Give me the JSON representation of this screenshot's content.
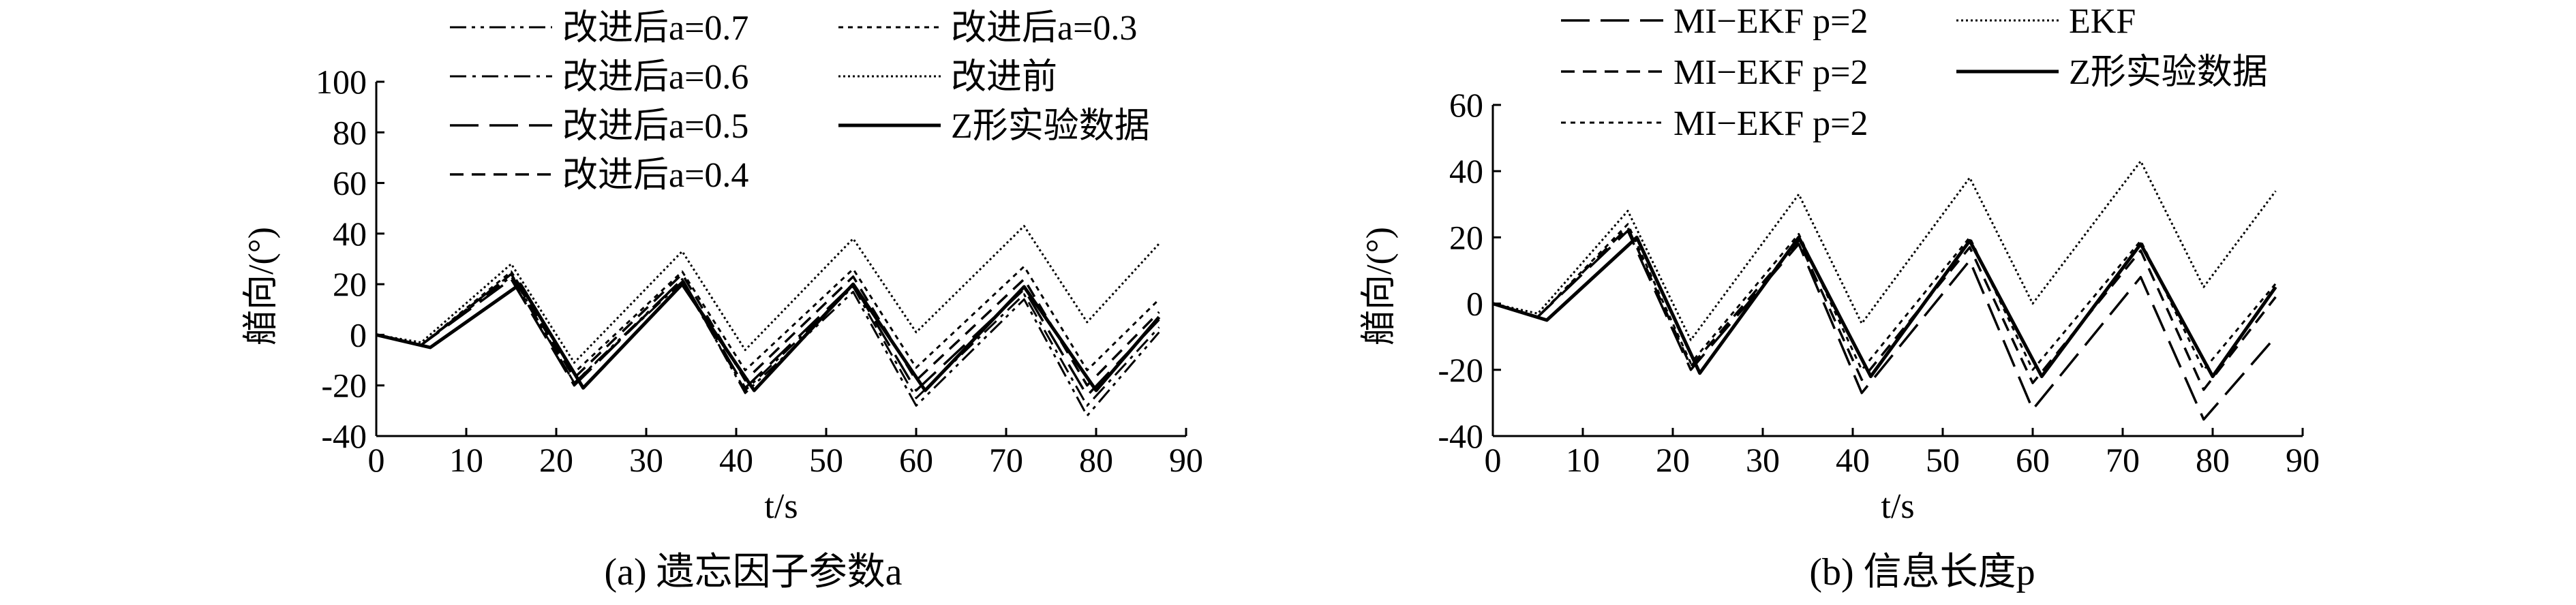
{
  "chart_data": [
    {
      "type": "line",
      "caption": "(a) 遗忘因子参数a",
      "xlabel": "t/s",
      "ylabel": "艏向/(°)",
      "xlim": [
        0,
        90
      ],
      "ylim": [
        -40,
        100
      ],
      "xticks": [
        0,
        10,
        20,
        30,
        40,
        50,
        60,
        70,
        80,
        90
      ],
      "yticks": [
        -40,
        -20,
        0,
        20,
        40,
        60,
        80,
        100
      ],
      "legend_placement": "top",
      "series": [
        {
          "name": "改进后a=0.7",
          "style": "dashdotdot",
          "x": [
            0,
            5,
            15,
            22,
            34,
            41,
            53,
            60,
            72,
            79,
            87
          ],
          "y": [
            0,
            -4,
            24,
            -19,
            22,
            -23,
            17,
            -28,
            14,
            -32,
            1
          ]
        },
        {
          "name": "改进后a=0.6",
          "style": "dashdot",
          "x": [
            0,
            5,
            15,
            22,
            34,
            41,
            53,
            60,
            72,
            79,
            87
          ],
          "y": [
            0,
            -4,
            23,
            -19,
            21,
            -22,
            19,
            -25,
            16,
            -28,
            3
          ]
        },
        {
          "name": "改进后a=0.5",
          "style": "longdash",
          "x": [
            0,
            5,
            15,
            22,
            34,
            41,
            53,
            60,
            72,
            79,
            87
          ],
          "y": [
            0,
            -4,
            22,
            -20,
            22,
            -21,
            20,
            -22,
            18,
            -24,
            6
          ]
        },
        {
          "name": "改进后a=0.4",
          "style": "dashed",
          "x": [
            0,
            5,
            15,
            22,
            34,
            41,
            53,
            60,
            72,
            79,
            87
          ],
          "y": [
            0,
            -4,
            24,
            -17,
            24,
            -18,
            23,
            -18,
            22,
            -20,
            9
          ]
        },
        {
          "name": "改进后a=0.3",
          "style": "dotted",
          "x": [
            0,
            5,
            15,
            22,
            34,
            41,
            53,
            60,
            72,
            79,
            87
          ],
          "y": [
            0,
            -4,
            25,
            -15,
            25,
            -14,
            26,
            -13,
            27,
            -14,
            14
          ]
        },
        {
          "name": "改进前",
          "style": "fine-dotted",
          "x": [
            0,
            5,
            15,
            22,
            34,
            41,
            53,
            60,
            72,
            79,
            87
          ],
          "y": [
            0,
            -3,
            28,
            -11,
            33,
            -6,
            38,
            1,
            43,
            5,
            36
          ]
        },
        {
          "name": "Z形实验数据",
          "style": "solid",
          "x": [
            0,
            6,
            16,
            23,
            34,
            42,
            53,
            61,
            72,
            80,
            87
          ],
          "y": [
            0,
            -5,
            20,
            -21,
            20,
            -22,
            20,
            -22,
            19,
            -22,
            7
          ]
        }
      ]
    },
    {
      "type": "line",
      "caption": "(b) 信息长度p",
      "xlabel": "t/s",
      "ylabel": "艏向/(°)",
      "xlim": [
        0,
        90
      ],
      "ylim": [
        -40,
        60
      ],
      "xticks": [
        0,
        10,
        20,
        30,
        40,
        50,
        60,
        70,
        80,
        90
      ],
      "yticks": [
        -40,
        -20,
        0,
        20,
        40,
        60
      ],
      "legend_placement": "top",
      "series": [
        {
          "name": "MI−EKF p=2",
          "style": "longdash",
          "x": [
            0,
            5,
            15,
            22,
            34,
            41,
            53,
            60,
            72,
            79,
            87
          ],
          "y": [
            0,
            -4,
            22,
            -20,
            18,
            -27,
            13,
            -32,
            8,
            -35,
            -10
          ]
        },
        {
          "name": "MI−EKF p=2",
          "style": "dashed",
          "x": [
            0,
            5,
            15,
            22,
            34,
            41,
            53,
            60,
            72,
            79,
            87
          ],
          "y": [
            0,
            -4,
            23,
            -19,
            19,
            -23,
            17,
            -24,
            16,
            -26,
            2
          ]
        },
        {
          "name": "MI−EKF p=2",
          "style": "dotted",
          "x": [
            0,
            5,
            15,
            22,
            34,
            41,
            53,
            60,
            72,
            79,
            87
          ],
          "y": [
            0,
            -4,
            24,
            -18,
            21,
            -20,
            20,
            -20,
            19,
            -20,
            6
          ]
        },
        {
          "name": "EKF",
          "style": "fine-dotted",
          "x": [
            0,
            5,
            15,
            22,
            34,
            41,
            53,
            60,
            72,
            79,
            87
          ],
          "y": [
            0,
            -3,
            28,
            -11,
            33,
            -6,
            38,
            0,
            43,
            5,
            34
          ]
        },
        {
          "name": "Z形实验数据",
          "style": "solid",
          "x": [
            0,
            6,
            16,
            23,
            34,
            42,
            53,
            61,
            72,
            80,
            87
          ],
          "y": [
            0,
            -5,
            20,
            -21,
            20,
            -22,
            19,
            -22,
            18,
            -22,
            5
          ]
        }
      ]
    }
  ]
}
